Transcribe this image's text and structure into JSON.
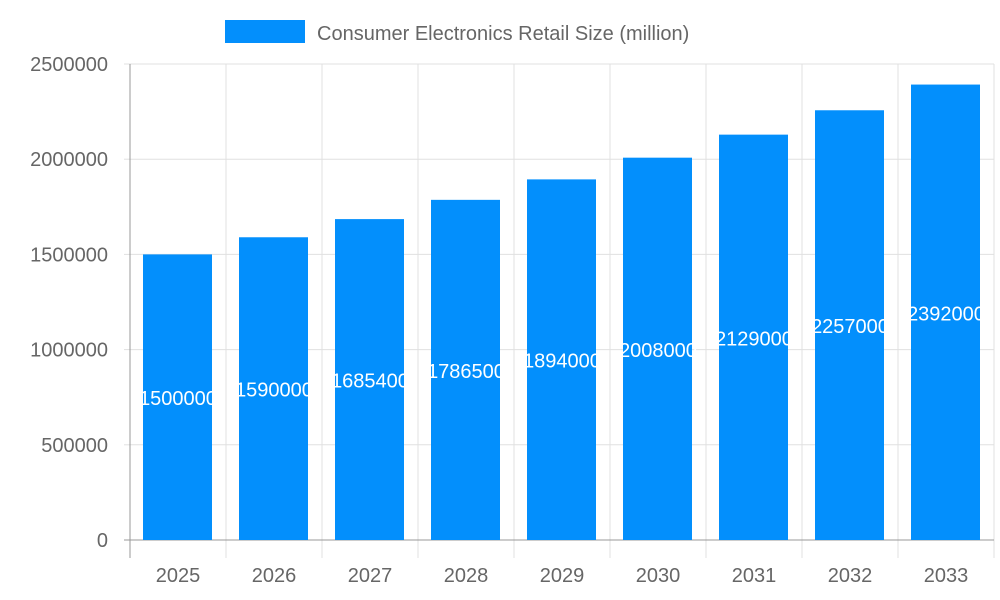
{
  "chart_data": {
    "type": "bar",
    "categories": [
      "2025",
      "2026",
      "2027",
      "2028",
      "2029",
      "2030",
      "2031",
      "2032",
      "2033"
    ],
    "series": [
      {
        "name": "Consumer Electronics Retail Size (million)",
        "values": [
          1500000,
          1590000,
          1685400,
          1786500,
          1894000,
          2008000,
          2129000,
          2257000,
          2392000
        ]
      }
    ],
    "yticks": [
      0,
      500000,
      1000000,
      1500000,
      2000000,
      2500000
    ],
    "ylim": [
      0,
      2500000
    ],
    "grid": true,
    "legend": "top",
    "data_labels": true,
    "colors": {
      "bar": "#038ffc",
      "grid": "#e0e0e0",
      "axis": "#999999",
      "text": "#666666",
      "label": "#ffffff"
    }
  }
}
